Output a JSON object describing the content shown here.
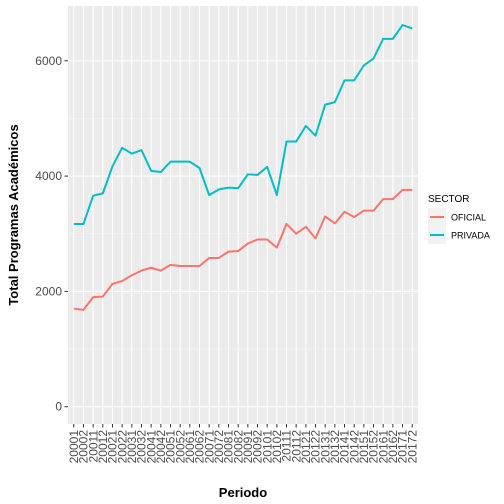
{
  "chart_data": {
    "type": "line",
    "xlabel": "Periodo",
    "ylabel": "Total Programas Académicos",
    "ylim": [
      -300,
      6950
    ],
    "yticks": [
      0,
      2000,
      4000,
      6000
    ],
    "ytick_labels": [
      "0",
      "2000",
      "4000",
      "6000"
    ],
    "x": [
      "20001",
      "20002",
      "20011",
      "20012",
      "20021",
      "20022",
      "20031",
      "20032",
      "20041",
      "20042",
      "20051",
      "20052",
      "20061",
      "20062",
      "20071",
      "20072",
      "20081",
      "20082",
      "20091",
      "20092",
      "20101",
      "20102",
      "20111",
      "20112",
      "20121",
      "20122",
      "20131",
      "20132",
      "20141",
      "20142",
      "20151",
      "20152",
      "20161",
      "20162",
      "20171",
      "20172"
    ],
    "grid": true,
    "legend": {
      "title": "SECTOR",
      "position": "right"
    },
    "series": [
      {
        "name": "OFICIAL",
        "color": "#F8766D",
        "values": [
          1700,
          1680,
          1900,
          1910,
          2130,
          2180,
          2280,
          2360,
          2410,
          2360,
          2460,
          2440,
          2440,
          2440,
          2580,
          2580,
          2690,
          2700,
          2830,
          2900,
          2900,
          2760,
          3170,
          3000,
          3120,
          2920,
          3300,
          3180,
          3380,
          3290,
          3400,
          3400,
          3600,
          3600,
          3760,
          3760
        ]
      },
      {
        "name": "PRIVADA",
        "color": "#00BFC4",
        "values": [
          3170,
          3170,
          3660,
          3700,
          4170,
          4490,
          4390,
          4450,
          4090,
          4070,
          4250,
          4250,
          4250,
          4140,
          3670,
          3770,
          3800,
          3790,
          4030,
          4020,
          4160,
          3670,
          4600,
          4600,
          4870,
          4700,
          5240,
          5280,
          5660,
          5660,
          5920,
          6040,
          6380,
          6380,
          6620,
          6560
        ]
      }
    ]
  }
}
